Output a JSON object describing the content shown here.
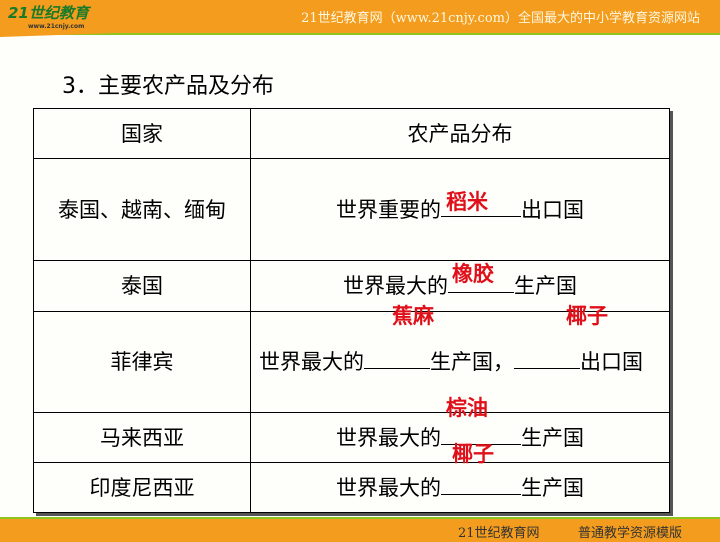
{
  "header": {
    "logo": "21世纪教育",
    "logo_url": "www.21cnjy.com",
    "site": "21世纪教育网（www.21cnjy.com）全国最大的中小学教育资源网站"
  },
  "footer": {
    "left": "21世纪教育网",
    "right": "普通教学资源模版"
  },
  "title": "3．主要农产品及分布",
  "table": {
    "headers": [
      "国家",
      "农产品分布"
    ],
    "rows": [
      {
        "country": "泰国、越南、缅甸",
        "pre": "世界重要的",
        "post": "出口国"
      },
      {
        "country": "泰国",
        "pre": "世界最大的",
        "post": "生产国"
      },
      {
        "country": "菲律宾",
        "pre": "世界最大的",
        "mid": "生产国，",
        "post": "出口国"
      },
      {
        "country": "马来西亚",
        "pre": "世界最大的",
        "post": "生产国"
      },
      {
        "country": "印度尼西亚",
        "pre": "世界最大的",
        "post": "生产国"
      }
    ]
  },
  "answers": [
    "稻米",
    "橡胶",
    "蕉麻",
    "椰子",
    "棕油",
    "椰子"
  ],
  "colors": {
    "accent": "#f39c1d",
    "answer": "#e0101a"
  }
}
